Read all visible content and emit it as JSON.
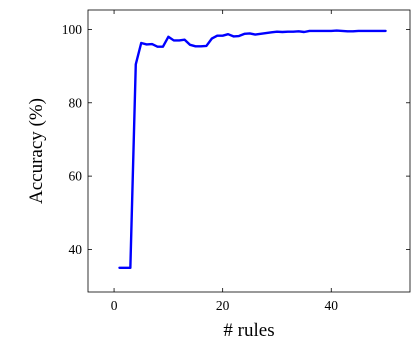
{
  "chart_data": {
    "type": "line",
    "title": "",
    "xlabel": "# rules",
    "ylabel": "Accuracy (%)",
    "xlim": [
      -4.8,
      54.5
    ],
    "ylim": [
      28.4,
      105.3
    ],
    "xticks": [
      0,
      20,
      40
    ],
    "yticks": [
      40,
      60,
      80,
      100
    ],
    "xtick_labels": [
      "0",
      "20",
      "40"
    ],
    "ytick_labels": [
      "40",
      "60",
      "80",
      "100"
    ],
    "grid": false,
    "legend": "none",
    "series": [
      {
        "color": "#0000ff",
        "x": [
          1,
          2,
          3,
          4,
          5,
          6,
          7,
          8,
          9,
          10,
          11,
          12,
          13,
          14,
          15,
          16,
          17,
          18,
          19,
          20,
          21,
          22,
          23,
          24,
          25,
          26,
          27,
          28,
          29,
          30,
          31,
          32,
          33,
          34,
          35,
          36,
          37,
          38,
          39,
          40,
          41,
          42,
          43,
          44,
          45,
          46,
          47,
          48,
          49,
          50
        ],
        "values": [
          35.0,
          35.0,
          35.0,
          90.5,
          96.3,
          95.9,
          96.0,
          95.3,
          95.3,
          98.0,
          97.0,
          97.0,
          97.2,
          95.8,
          95.4,
          95.4,
          95.5,
          97.5,
          98.3,
          98.3,
          98.7,
          98.1,
          98.2,
          98.8,
          98.9,
          98.6,
          98.8,
          99.0,
          99.2,
          99.4,
          99.3,
          99.4,
          99.4,
          99.5,
          99.3,
          99.6,
          99.6,
          99.6,
          99.6,
          99.6,
          99.7,
          99.6,
          99.5,
          99.5,
          99.6,
          99.6,
          99.6,
          99.6,
          99.6,
          99.6
        ]
      }
    ]
  }
}
